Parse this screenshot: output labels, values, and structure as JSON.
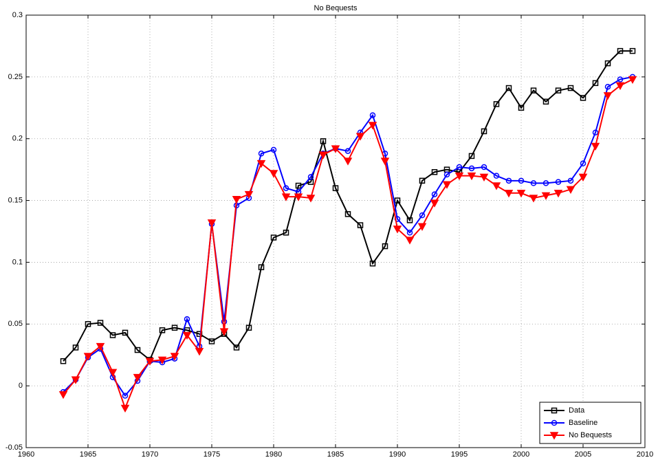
{
  "chart_data": {
    "type": "line",
    "title": "No Bequests",
    "x": [
      1963,
      1964,
      1965,
      1966,
      1967,
      1968,
      1969,
      1970,
      1971,
      1972,
      1973,
      1974,
      1975,
      1976,
      1977,
      1978,
      1979,
      1980,
      1981,
      1982,
      1983,
      1984,
      1985,
      1986,
      1987,
      1988,
      1989,
      1990,
      1991,
      1992,
      1993,
      1994,
      1995,
      1996,
      1997,
      1998,
      1999,
      2000,
      2001,
      2002,
      2003,
      2004,
      2005,
      2006,
      2007,
      2008,
      2009
    ],
    "series": [
      {
        "name": "Data",
        "color": "#000000",
        "marker": "square",
        "values": [
          0.02,
          0.031,
          0.05,
          0.051,
          0.041,
          0.043,
          0.029,
          0.021,
          0.045,
          0.047,
          0.045,
          0.042,
          0.036,
          0.042,
          0.031,
          0.047,
          0.096,
          0.12,
          0.124,
          0.162,
          0.165,
          0.198,
          0.16,
          0.139,
          0.13,
          0.099,
          0.113,
          0.15,
          0.134,
          0.166,
          0.173,
          0.175,
          0.173,
          0.186,
          0.206,
          0.228,
          0.241,
          0.225,
          0.239,
          0.23,
          0.239,
          0.241,
          0.233,
          0.245,
          0.261,
          0.271,
          0.271
        ]
      },
      {
        "name": "Baseline",
        "color": "#0000ff",
        "marker": "circle",
        "values": [
          -0.005,
          0.005,
          0.023,
          0.03,
          0.007,
          -0.008,
          0.004,
          0.02,
          0.019,
          0.022,
          0.054,
          0.032,
          0.131,
          0.052,
          0.146,
          0.152,
          0.188,
          0.191,
          0.16,
          0.157,
          0.169,
          0.188,
          0.192,
          0.19,
          0.205,
          0.219,
          0.188,
          0.135,
          0.124,
          0.138,
          0.155,
          0.171,
          0.177,
          0.176,
          0.177,
          0.17,
          0.166,
          0.166,
          0.164,
          0.164,
          0.165,
          0.166,
          0.18,
          0.205,
          0.242,
          0.248,
          0.25
        ]
      },
      {
        "name": "No Bequests",
        "color": "#ff0000",
        "marker": "triangle-down",
        "values": [
          -0.007,
          0.005,
          0.024,
          0.032,
          0.011,
          -0.018,
          0.007,
          0.02,
          0.021,
          0.024,
          0.041,
          0.028,
          0.132,
          0.044,
          0.151,
          0.155,
          0.18,
          0.172,
          0.153,
          0.153,
          0.152,
          0.187,
          0.192,
          0.182,
          0.202,
          0.211,
          0.182,
          0.127,
          0.118,
          0.129,
          0.148,
          0.163,
          0.17,
          0.17,
          0.169,
          0.162,
          0.156,
          0.156,
          0.152,
          0.154,
          0.156,
          0.159,
          0.169,
          0.194,
          0.235,
          0.243,
          0.248
        ]
      }
    ],
    "xlim": [
      1960,
      2010
    ],
    "xticks": [
      1960,
      1965,
      1970,
      1975,
      1980,
      1985,
      1990,
      1995,
      2000,
      2005,
      2010
    ],
    "ylim": [
      -0.05,
      0.3
    ],
    "yticks": [
      -0.05,
      0,
      0.05,
      0.1,
      0.15,
      0.2,
      0.25,
      0.3
    ],
    "grid": true,
    "legend": "lower right"
  }
}
